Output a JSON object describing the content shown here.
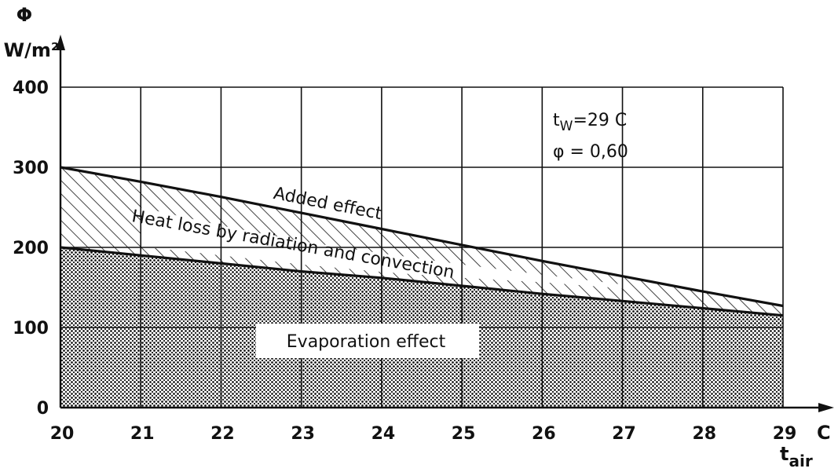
{
  "chart_data": {
    "type": "area",
    "x": [
      20,
      21,
      22,
      23,
      24,
      25,
      26,
      27,
      28,
      29
    ],
    "series": [
      {
        "name": "Evaporation effect",
        "values": [
          200,
          190,
          180,
          170,
          162,
          152,
          142,
          133,
          124,
          115
        ],
        "fill": "dotted"
      },
      {
        "name": "Heat loss by radiation and convection",
        "values": [
          300,
          282,
          263,
          243,
          223,
          203,
          183,
          164,
          145,
          127
        ],
        "fill": "white"
      },
      {
        "name": "Added effect",
        "fill": "hatched",
        "note_offset": 0
      }
    ],
    "title": "",
    "ylabel": "Φ",
    "yunit": "W/m²",
    "xlabel": "t",
    "xlabel_subscript": "air",
    "xunit": "C",
    "xticks": [
      "20",
      "21",
      "22",
      "23",
      "24",
      "25",
      "26",
      "27",
      "28",
      "29"
    ],
    "yticks": [
      "0",
      "100",
      "200",
      "300",
      "400"
    ],
    "xlim": [
      20,
      29
    ],
    "ylim": [
      0,
      400
    ],
    "grid": true,
    "annotations": {
      "tw_prefix": "t",
      "tw_subscript": "W",
      "tw_value": "=29 C",
      "phi": "φ = 0,60"
    }
  }
}
